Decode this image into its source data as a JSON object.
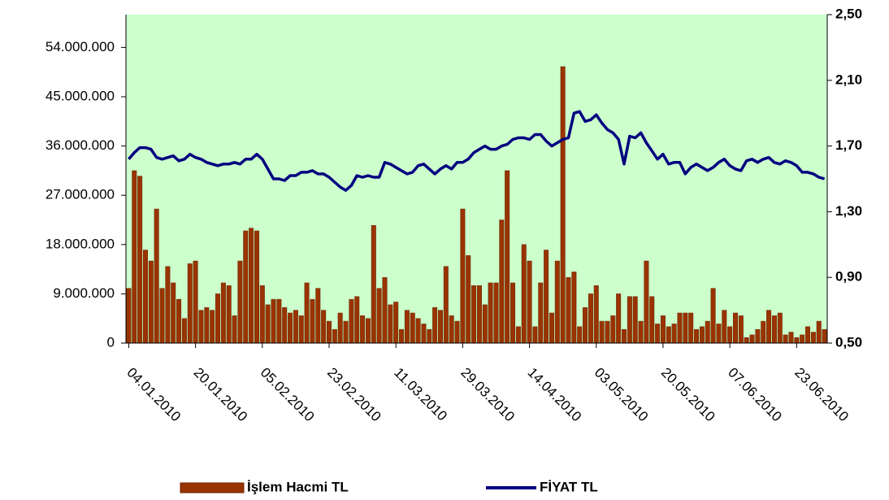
{
  "chart_data": {
    "type": "bar-line",
    "categories": [
      "04.01.2010",
      null,
      null,
      null,
      null,
      null,
      null,
      null,
      null,
      null,
      null,
      null,
      "20.01.2010",
      null,
      null,
      null,
      null,
      null,
      null,
      null,
      null,
      null,
      null,
      null,
      "05.02.2010",
      null,
      null,
      null,
      null,
      null,
      null,
      null,
      null,
      null,
      null,
      null,
      "23.02.2010",
      null,
      null,
      null,
      null,
      null,
      null,
      null,
      null,
      null,
      null,
      null,
      "11.03.2010",
      null,
      null,
      null,
      null,
      null,
      null,
      null,
      null,
      null,
      null,
      null,
      "29.03.2010",
      null,
      null,
      null,
      null,
      null,
      null,
      null,
      null,
      null,
      null,
      null,
      "14.04.2010",
      null,
      null,
      null,
      null,
      null,
      null,
      null,
      null,
      null,
      null,
      null,
      "03.05.2010",
      null,
      null,
      null,
      null,
      null,
      null,
      null,
      null,
      null,
      null,
      null,
      "20.05.2010",
      null,
      null,
      null,
      null,
      null,
      null,
      null,
      null,
      null,
      null,
      null,
      "07.06.2010",
      null,
      null,
      null,
      null,
      null,
      null,
      null,
      null,
      null,
      null,
      null,
      "23.06.2010",
      null,
      null,
      null,
      null,
      null
    ],
    "series": [
      {
        "name": "İşlem Hacmi TL",
        "type": "bar",
        "color": "#993300",
        "values": [
          10000000,
          31500000,
          30500000,
          17000000,
          15000000,
          24500000,
          10000000,
          14000000,
          11000000,
          8000000,
          4500000,
          14500000,
          15000000,
          6000000,
          6500000,
          6000000,
          9000000,
          11000000,
          10500000,
          5000000,
          15000000,
          20500000,
          21000000,
          20500000,
          10500000,
          7000000,
          8000000,
          8000000,
          6500000,
          5500000,
          6000000,
          5000000,
          11000000,
          8000000,
          10000000,
          6000000,
          4000000,
          2500000,
          5500000,
          4000000,
          8000000,
          8500000,
          5000000,
          4500000,
          21500000,
          10000000,
          12000000,
          7000000,
          7500000,
          2500000,
          6000000,
          5500000,
          4500000,
          3500000,
          2500000,
          6500000,
          6000000,
          14000000,
          5000000,
          4000000,
          24500000,
          16000000,
          10500000,
          10500000,
          7000000,
          11000000,
          11000000,
          22500000,
          31500000,
          11000000,
          3000000,
          18000000,
          15000000,
          3000000,
          11000000,
          17000000,
          5500000,
          15000000,
          50500000,
          12000000,
          13000000,
          3000000,
          6500000,
          9000000,
          10500000,
          4000000,
          4000000,
          5000000,
          9000000,
          2500000,
          8500000,
          8500000,
          4000000,
          15000000,
          8500000,
          3500000,
          5000000,
          3000000,
          3500000,
          5500000,
          5500000,
          5500000,
          2500000,
          3000000,
          4000000,
          10000000,
          3500000,
          6000000,
          3000000,
          5500000,
          5000000,
          1000000,
          1500000,
          2500000,
          4000000,
          6000000,
          5000000,
          5500000,
          1500000,
          2000000,
          1000000,
          1500000,
          3000000,
          2000000,
          4000000,
          2500000
        ]
      },
      {
        "name": "FİYAT TL",
        "type": "line",
        "axis": "y2",
        "color": "#000080",
        "values": [
          1.62,
          1.66,
          1.69,
          1.69,
          1.68,
          1.63,
          1.62,
          1.63,
          1.64,
          1.61,
          1.62,
          1.65,
          1.63,
          1.62,
          1.6,
          1.59,
          1.58,
          1.59,
          1.59,
          1.6,
          1.59,
          1.62,
          1.62,
          1.65,
          1.62,
          1.56,
          1.5,
          1.5,
          1.49,
          1.52,
          1.52,
          1.54,
          1.54,
          1.55,
          1.53,
          1.53,
          1.51,
          1.48,
          1.45,
          1.43,
          1.46,
          1.52,
          1.51,
          1.52,
          1.51,
          1.51,
          1.6,
          1.59,
          1.57,
          1.55,
          1.53,
          1.54,
          1.58,
          1.59,
          1.56,
          1.53,
          1.56,
          1.58,
          1.56,
          1.6,
          1.6,
          1.62,
          1.66,
          1.68,
          1.7,
          1.68,
          1.68,
          1.7,
          1.71,
          1.74,
          1.75,
          1.75,
          1.74,
          1.77,
          1.77,
          1.73,
          1.7,
          1.72,
          1.74,
          1.75,
          1.9,
          1.91,
          1.85,
          1.86,
          1.89,
          1.84,
          1.8,
          1.78,
          1.74,
          1.59,
          1.76,
          1.75,
          1.78,
          1.72,
          1.67,
          1.62,
          1.65,
          1.59,
          1.6,
          1.6,
          1.53,
          1.57,
          1.59,
          1.57,
          1.55,
          1.57,
          1.6,
          1.62,
          1.58,
          1.56,
          1.55,
          1.61,
          1.62,
          1.6,
          1.62,
          1.63,
          1.6,
          1.59,
          1.61,
          1.6,
          1.58,
          1.54,
          1.54,
          1.53,
          1.51,
          1.5
        ]
      }
    ],
    "ylim": [
      0,
      60000000
    ],
    "yticks": [
      0,
      {
        "value": 9000000,
        "label": "9.000.000"
      },
      {
        "value": 18000000,
        "label": "18.000.000"
      },
      {
        "value": 27000000,
        "label": "27.000.000"
      },
      {
        "value": 36000000,
        "label": "36.000.000"
      },
      {
        "value": 45000000,
        "label": "45.000.000"
      },
      {
        "value": 54000000,
        "label": "54.000.000"
      }
    ],
    "y2lim": [
      0.5,
      2.5
    ],
    "y2ticks": [
      {
        "value": 0.5,
        "label": "0,50"
      },
      {
        "value": 0.9,
        "label": "0,90"
      },
      {
        "value": 1.3,
        "label": "1,30"
      },
      {
        "value": 1.7,
        "label": "1,70"
      },
      {
        "value": 2.1,
        "label": "2,10"
      },
      {
        "value": 2.5,
        "label": "2,50"
      }
    ],
    "plot_background": "#ccffcc",
    "legend": "bottom"
  }
}
